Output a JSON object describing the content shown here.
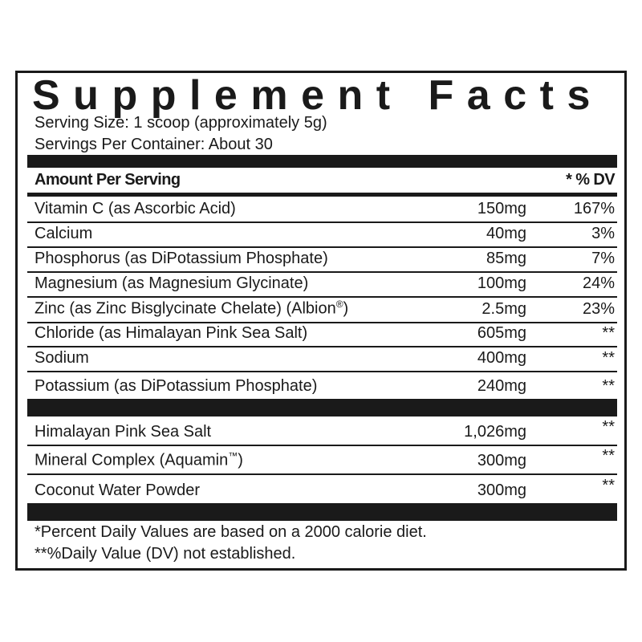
{
  "title": "Supplement Facts",
  "serving_size": "Serving Size: 1 scoop (approximately 5g)",
  "servings_per_container": "Servings Per Container: About 30",
  "header": {
    "amount": "Amount Per Serving",
    "dv": "* % DV"
  },
  "nutrients": [
    {
      "name": "Vitamin C (as Ascorbic Acid)",
      "amount": "150mg",
      "dv": "167%"
    },
    {
      "name": "Calcium",
      "amount": "40mg",
      "dv": "3%"
    },
    {
      "name": "Phosphorus (as DiPotassium Phosphate)",
      "amount": "85mg",
      "dv": "7%"
    },
    {
      "name": "Magnesium (as Magnesium Glycinate)",
      "amount": "100mg",
      "dv": "24%"
    },
    {
      "name": "Zinc (as Zinc Bisglycinate Chelate) (Albion",
      "mark": "®",
      "name_end": ")",
      "amount": "2.5mg",
      "dv": "23%"
    },
    {
      "name": "Chloride (as Himalayan Pink Sea Salt)",
      "amount": "605mg",
      "dv": "**"
    },
    {
      "name": "Sodium",
      "amount": "400mg",
      "dv": "**"
    },
    {
      "name": "Potassium (as DiPotassium Phosphate)",
      "amount": "240mg",
      "dv": "**"
    }
  ],
  "other": [
    {
      "name": "Himalayan Pink Sea Salt",
      "amount": "1,026mg",
      "dv": "**"
    },
    {
      "name": "Mineral Complex (Aquamin",
      "mark": "™",
      "name_end": ")",
      "amount": "300mg",
      "dv": "**"
    },
    {
      "name": "Coconut Water Powder",
      "amount": "300mg",
      "dv": "**"
    }
  ],
  "footnotes": [
    "*Percent Daily Values are based on a 2000 calorie diet.",
    "**%Daily Value (DV) not established."
  ]
}
